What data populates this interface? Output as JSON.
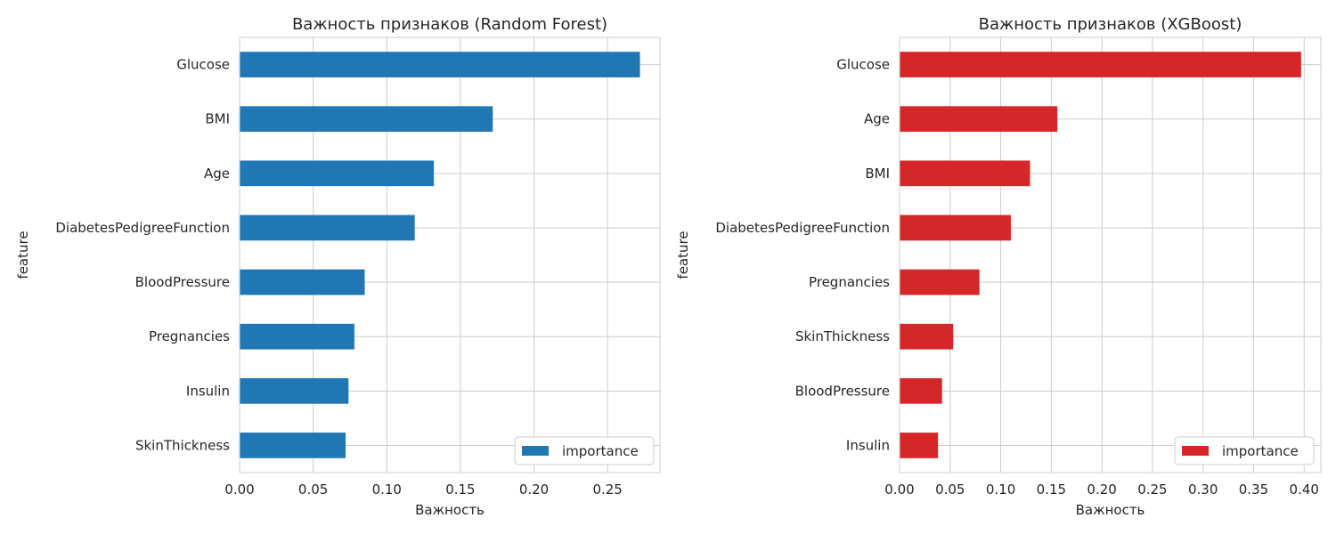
{
  "chart_data": [
    {
      "type": "bar",
      "orientation": "horizontal",
      "title": "Важность признаков (Random Forest)",
      "xlabel": "Важность",
      "ylabel": "feature",
      "categories": [
        "Glucose",
        "BMI",
        "Age",
        "DiabetesPedigreeFunction",
        "BloodPressure",
        "Pregnancies",
        "Insulin",
        "SkinThickness"
      ],
      "series": [
        {
          "name": "importance",
          "values": [
            0.272,
            0.172,
            0.132,
            0.119,
            0.085,
            0.078,
            0.074,
            0.072
          ],
          "color": "#1f77b4"
        }
      ],
      "xticks": [
        "0.00",
        "0.05",
        "0.10",
        "0.15",
        "0.20",
        "0.25"
      ],
      "xlim": [
        0,
        0.2856
      ],
      "grid": true,
      "legend": "lower-right"
    },
    {
      "type": "bar",
      "orientation": "horizontal",
      "title": "Важность признаков (XGBoost)",
      "xlabel": "Важность",
      "ylabel": "feature",
      "categories": [
        "Glucose",
        "Age",
        "BMI",
        "DiabetesPedigreeFunction",
        "Pregnancies",
        "SkinThickness",
        "BloodPressure",
        "Insulin"
      ],
      "series": [
        {
          "name": "importance",
          "values": [
            0.397,
            0.156,
            0.129,
            0.11,
            0.079,
            0.053,
            0.042,
            0.038
          ],
          "color": "#d62728"
        }
      ],
      "xticks": [
        "0.00",
        "0.05",
        "0.10",
        "0.15",
        "0.20",
        "0.25",
        "0.30",
        "0.35",
        "0.40"
      ],
      "xlim": [
        0,
        0.4165
      ],
      "grid": true,
      "legend": "lower-right"
    }
  ]
}
